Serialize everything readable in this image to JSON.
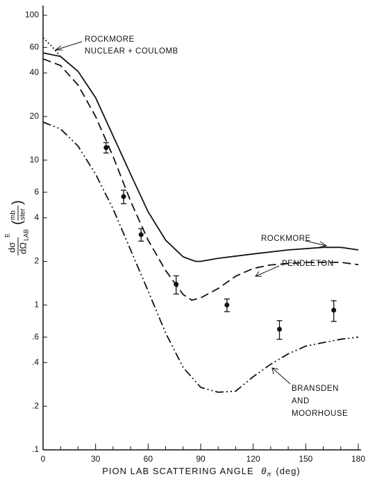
{
  "chart_data": {
    "type": "line",
    "log_y": true,
    "xlabel": {
      "text": "PION LAB SCATTERING ANGLE",
      "symbol": "θ",
      "symbol_subscript": "π",
      "unit": "(deg)"
    },
    "ylabel": {
      "numerator": "dσ",
      "superscript": "E",
      "denominator": "dΩ",
      "subscript": "LAB",
      "unit_numerator": "mb",
      "unit_denominator": "ster"
    },
    "xlim": [
      0,
      180
    ],
    "ylim": [
      0.1,
      100
    ],
    "xticks": [
      0,
      30,
      60,
      90,
      120,
      150,
      180
    ],
    "xminorticks": [
      10,
      20,
      40,
      50,
      70,
      80,
      100,
      110,
      130,
      140,
      160,
      170
    ],
    "yticks": [
      100,
      60,
      40,
      20,
      10,
      6,
      4,
      2,
      1,
      {
        "value": 0.6,
        "label": ".6"
      },
      {
        "value": 0.4,
        "label": ".4"
      },
      {
        "value": 0.2,
        "label": ".2"
      },
      {
        "value": 0.1,
        "label": ".1"
      }
    ],
    "color": "#111111",
    "series": [
      {
        "style": "solid",
        "x": [
          0,
          10,
          20,
          30,
          40,
          50,
          60,
          70,
          80,
          87,
          90,
          100,
          120,
          140,
          160,
          170,
          180
        ],
        "values": [
          55,
          52,
          41,
          27,
          14.7,
          8,
          4.4,
          2.8,
          2.15,
          2.0,
          2.0,
          2.1,
          2.25,
          2.4,
          2.5,
          2.5,
          2.4
        ]
      },
      {
        "style": "dotted",
        "x": [
          0,
          5,
          10,
          15
        ],
        "values": [
          70,
          61,
          52,
          46
        ]
      },
      {
        "style": "dashed",
        "x": [
          0,
          10,
          20,
          30,
          40,
          50,
          60,
          70,
          80,
          85,
          90,
          100,
          110,
          120,
          130,
          140,
          150,
          160,
          170,
          180
        ],
        "values": [
          50,
          45,
          33,
          20,
          10.6,
          5.2,
          2.8,
          1.73,
          1.18,
          1.08,
          1.12,
          1.3,
          1.58,
          1.79,
          1.89,
          1.93,
          1.97,
          1.97,
          1.97,
          1.9
        ]
      },
      {
        "style": "dashdot",
        "x": [
          0,
          10,
          20,
          30,
          40,
          50,
          60,
          70,
          80,
          90,
          100,
          110,
          120,
          130,
          140,
          150,
          160,
          170,
          180
        ],
        "values": [
          18.3,
          16.4,
          12.5,
          8,
          4.6,
          2.4,
          1.25,
          0.64,
          0.37,
          0.27,
          0.25,
          0.254,
          0.32,
          0.39,
          0.46,
          0.52,
          0.55,
          0.58,
          0.6
        ]
      }
    ],
    "points": {
      "x": [
        36,
        46,
        56,
        76,
        105,
        135,
        166
      ],
      "values": [
        12.2,
        5.6,
        3.06,
        1.39,
        1.0,
        0.68,
        0.92
      ],
      "errors": [
        1.0,
        0.6,
        0.3,
        0.2,
        0.1,
        0.1,
        0.15
      ]
    },
    "annotations": [
      [
        "ROCKMORE",
        "NUCLEAR + COULOMB"
      ],
      [
        "ROCKMORE"
      ],
      [
        "PENDLETON"
      ],
      [
        "BRANSDEN",
        "AND",
        "MOORHOUSE"
      ]
    ]
  }
}
